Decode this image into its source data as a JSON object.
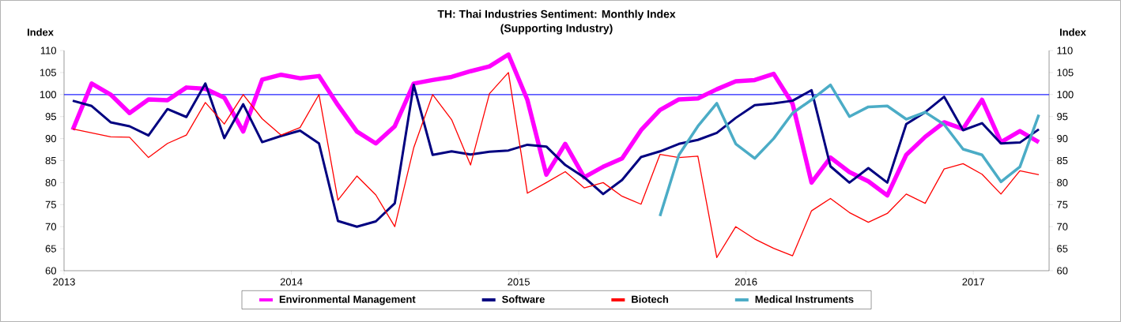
{
  "chart_data": {
    "type": "line",
    "title": "TH: Thai Industries Sentiment: Monthly Index\n(Supporting Industry)",
    "ylabel": "Index",
    "y2label": "Index",
    "x": [
      "2013-01-15",
      "2013-02-15",
      "2013-03-15",
      "2013-04-15",
      "2013-05-15",
      "2013-06-15",
      "2013-07-15",
      "2013-08-15",
      "2013-09-15",
      "2013-10-15",
      "2013-11-15",
      "2013-12-15",
      "2014-01-15",
      "2014-02-15",
      "2014-03-15",
      "2014-04-15",
      "2014-05-15",
      "2014-06-15",
      "2014-07-15",
      "2014-08-15",
      "2014-09-15",
      "2014-10-15",
      "2014-11-15",
      "2014-12-15",
      "2015-01-15",
      "2015-02-15",
      "2015-03-15",
      "2015-04-15",
      "2015-05-15",
      "2015-06-15",
      "2015-07-15",
      "2015-08-15",
      "2015-09-15",
      "2015-10-15",
      "2015-11-15",
      "2015-12-15",
      "2016-01-15",
      "2016-02-15",
      "2016-03-15",
      "2016-04-15",
      "2016-05-15",
      "2016-06-15",
      "2016-07-15",
      "2016-08-15",
      "2016-09-15",
      "2016-10-15",
      "2016-11-15",
      "2016-12-15",
      "2017-01-15",
      "2017-02-15",
      "2017-03-15",
      "2017-04-15"
    ],
    "series": [
      {
        "name": "Environmental Management",
        "color": "#ff00ff",
        "values": [
          92,
          102.5,
          100,
          95.8,
          98.9,
          98.7,
          101.6,
          101.3,
          99.3,
          91.6,
          103.4,
          104.5,
          103.7,
          104.2,
          97.6,
          91.6,
          88.9,
          92.8,
          102.5,
          103.3,
          104,
          105.3,
          106.4,
          109.1,
          98.8,
          81.8,
          88.8,
          81.2,
          83.6,
          85.5,
          91.9,
          96.5,
          98.9,
          99.1,
          101.2,
          103,
          103.3,
          104.7,
          97.9,
          80,
          85.7,
          82.4,
          80.3,
          77.1,
          86.3,
          90.4,
          93.7,
          92.2,
          98.8,
          89.2,
          91.7,
          89.2
        ]
      },
      {
        "name": "Software",
        "color": "#000080",
        "values": [
          98.6,
          97.4,
          93.7,
          92.8,
          90.7,
          96.7,
          94.9,
          102.5,
          90.1,
          97.8,
          89.2,
          90.6,
          91.8,
          88.9,
          71.3,
          70,
          71.2,
          75.3,
          102.2,
          86.3,
          87.1,
          86.4,
          87,
          87.3,
          88.6,
          88.2,
          84,
          81.2,
          77.4,
          80.6,
          85.8,
          87.1,
          88.8,
          89.7,
          91.3,
          94.7,
          97.6,
          98,
          98.6,
          101,
          83.7,
          80,
          83.3,
          80,
          93.3,
          96,
          99.5,
          91.9,
          93.5,
          88.9,
          89.1,
          92.1
        ]
      },
      {
        "name": "Biotech",
        "color": "#ff0000",
        "values": [
          92.2,
          91.3,
          90.4,
          90.3,
          85.7,
          88.9,
          90.8,
          98.2,
          93.3,
          100,
          94.5,
          90.8,
          92.5,
          100,
          76,
          81.5,
          77.2,
          70,
          87.9,
          100,
          94.3,
          84,
          100.2,
          105,
          77.6,
          80,
          82.5,
          78.8,
          80,
          76.9,
          75.1,
          86.4,
          85.7,
          86,
          63,
          70,
          67.2,
          65.1,
          63.4,
          73.6,
          76.4,
          73.2,
          71,
          73,
          77.4,
          75.3,
          83.1,
          84.3,
          81.9,
          77.4,
          82.7,
          81.8
        ]
      },
      {
        "name": "Medical Instruments",
        "color": "#4bacc6",
        "values": [
          null,
          null,
          null,
          null,
          null,
          null,
          null,
          null,
          null,
          null,
          null,
          null,
          null,
          null,
          null,
          null,
          null,
          null,
          null,
          null,
          null,
          null,
          null,
          null,
          null,
          null,
          null,
          null,
          null,
          null,
          null,
          72.4,
          86.3,
          92.8,
          98,
          88.8,
          85.5,
          90,
          95.8,
          98.8,
          102.2,
          95,
          97.2,
          97.4,
          94.4,
          96,
          93.2,
          87.6,
          86.3,
          80.2,
          83.6,
          95.4
        ]
      }
    ],
    "xlim": [
      "2013-01-01",
      "2017-05-01"
    ],
    "xticks": [
      "2013",
      "2014",
      "2015",
      "2016",
      "2017"
    ],
    "ylim": [
      60,
      110
    ],
    "yticks": [
      60,
      65,
      70,
      75,
      80,
      85,
      90,
      95,
      100,
      105,
      110
    ],
    "y2lim": [
      60,
      110
    ],
    "y2ticks": [
      60,
      65,
      70,
      75,
      80,
      85,
      90,
      95,
      100,
      105,
      110
    ],
    "ref_lines": [
      {
        "axis": "y",
        "value": 100,
        "color": "#2020ff"
      }
    ],
    "legend": "bottom",
    "line_style": "solid"
  }
}
